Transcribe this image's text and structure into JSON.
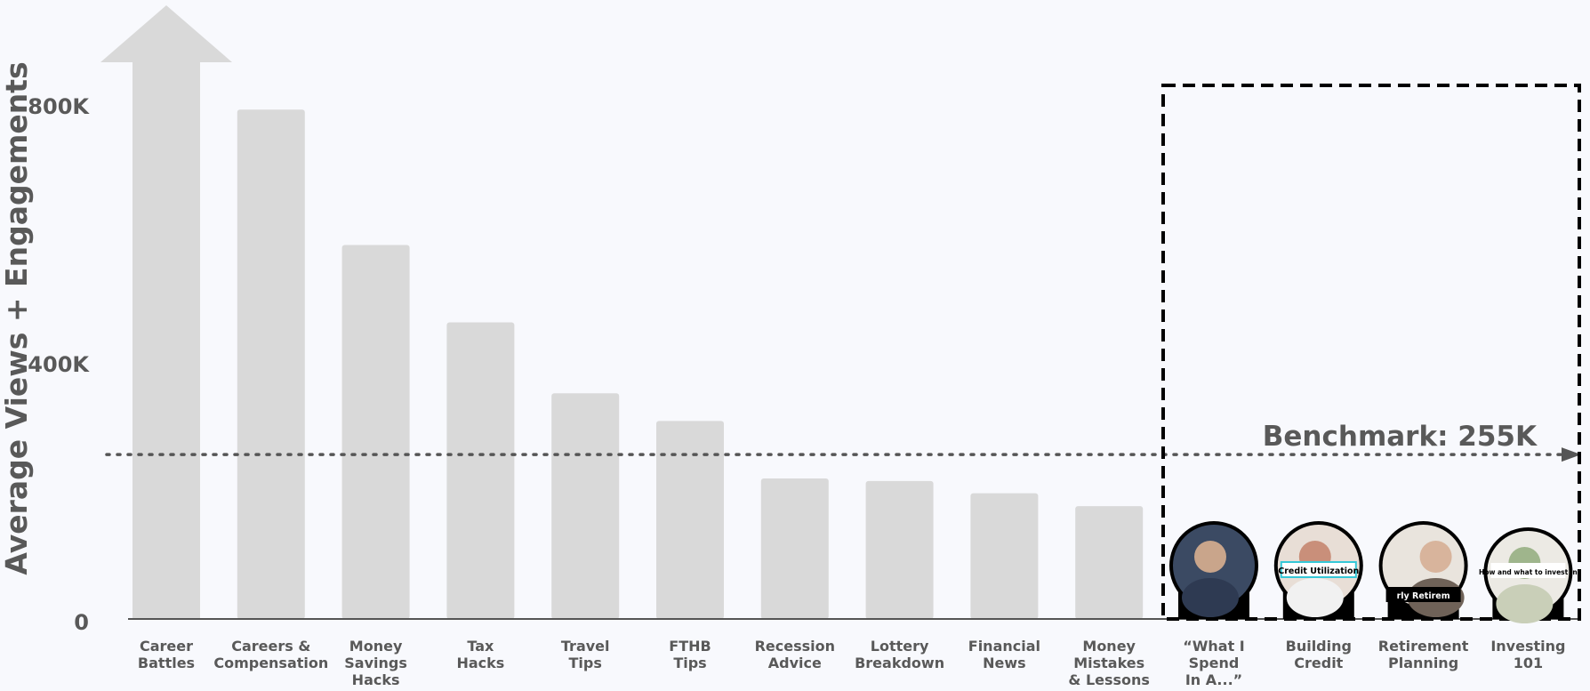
{
  "chart_data": {
    "type": "bar",
    "title": "",
    "ylabel": "Average Views + Engagements",
    "xlabel": "",
    "ylim": [
      0,
      800000
    ],
    "yticks": [
      {
        "value": 0,
        "label": "0"
      },
      {
        "value": 400000,
        "label": "400K"
      },
      {
        "value": 800000,
        "label": "800K"
      }
    ],
    "categories": [
      "Career Battles",
      "Careers & Compensation",
      "Money Savings Hacks",
      "Tax Hacks",
      "Travel Tips",
      "FTHB Tips",
      "Recession Advice",
      "Lottery Breakdown",
      "Financial News",
      "Money Mistakes & Lessons",
      "“What I Spend In A...”",
      "Building Credit",
      "Retirement Planning",
      "Investing 101"
    ],
    "category_lines": [
      [
        "Career",
        "Battles"
      ],
      [
        "Careers &",
        "Compensation"
      ],
      [
        "Money",
        "Savings",
        "Hacks"
      ],
      [
        "Tax",
        "Hacks"
      ],
      [
        "Travel",
        "Tips"
      ],
      [
        "FTHB",
        "Tips"
      ],
      [
        "Recession",
        "Advice"
      ],
      [
        "Lottery",
        "Breakdown"
      ],
      [
        "Financial",
        "News"
      ],
      [
        "Money",
        "Mistakes",
        "& Lessons"
      ],
      [
        "“What I",
        "Spend",
        "In A...”"
      ],
      [
        "Building",
        "Credit"
      ],
      [
        "Retirement",
        "Planning"
      ],
      [
        "Investing",
        "101"
      ]
    ],
    "values": [
      1000000,
      790000,
      580000,
      460000,
      350000,
      307000,
      218000,
      214000,
      195000,
      175000,
      null,
      null,
      null,
      null
    ],
    "overflow_category": "Career Battles",
    "benchmark": {
      "value": 255000,
      "label": "Benchmark: 255K"
    },
    "highlight_categories": [
      "“What I Spend In A...”",
      "Building Credit",
      "Retirement Planning",
      "Investing 101"
    ],
    "thumbnail_text": {
      "Building Credit": "Credit Utilization",
      "Retirement Planning": "rly Retirem",
      "Investing 101": "How and what to invest in"
    },
    "grid": false,
    "legend": "none",
    "colors": {
      "bar": "#d9d9d9",
      "text": "#595959",
      "axis": "#555555",
      "highlight_border": "#000000"
    }
  }
}
